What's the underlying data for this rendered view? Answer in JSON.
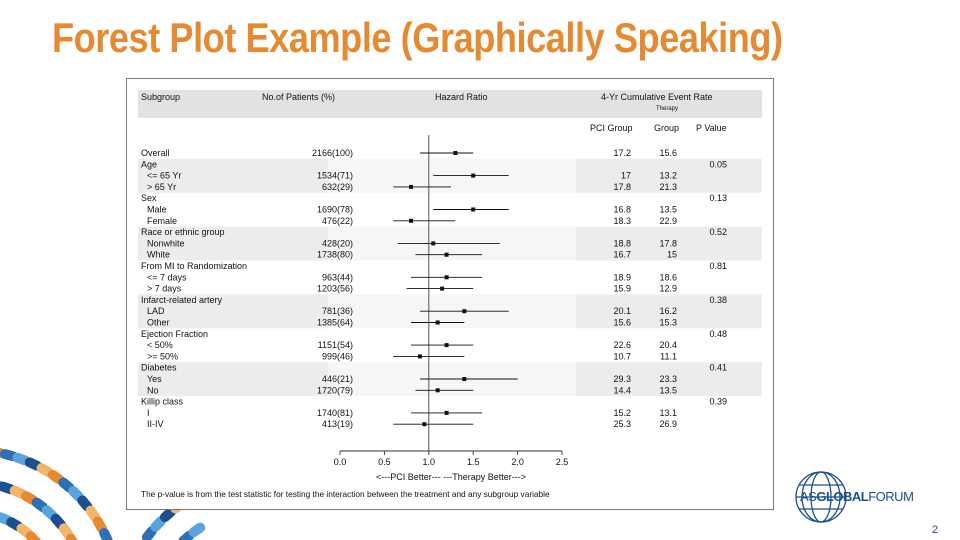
{
  "slide": {
    "title": "Forest Plot Example (Graphically Speaking)",
    "page_number": "2",
    "logo_text_prefix": "AS",
    "logo_text_bold": "GLOBAL",
    "logo_text_suffix": "FORUM",
    "accent_color": "#e58a32"
  },
  "chart_data": {
    "type": "forest",
    "headers": {
      "subgroup": "Subgroup",
      "patients": "No.of Patients (%)",
      "hazard_ratio": "Hazard Ratio",
      "event_rate": "4-Yr Cumulative Event Rate",
      "therapy": "Therapy",
      "pci_group": "PCI Group",
      "group": "Group",
      "p_value": "P Value"
    },
    "x_ticks": [
      "0.0",
      "0.5",
      "1.0",
      "1.5",
      "2.0",
      "2.5"
    ],
    "x_tick_values": [
      0,
      0.5,
      1.0,
      1.5,
      2.0,
      2.5
    ],
    "xlim": [
      0,
      2.5
    ],
    "reference_line": 1.0,
    "xlabel": "<---PCI Better---     ---Therapy Better--->",
    "footnote": "The p-value is from the test statistic for testing the interaction between the treatment and any subgroup variable",
    "rows": [
      {
        "label": "Overall",
        "indent": false,
        "n": "2166(100)",
        "hr": 1.3,
        "lo": 0.9,
        "hi": 1.5,
        "pci": "17.2",
        "therapy": "15.6",
        "p": ""
      },
      {
        "label": "Age",
        "indent": false,
        "header": true,
        "p": "0.05"
      },
      {
        "label": "<= 65 Yr",
        "indent": true,
        "n": "1534(71)",
        "hr": 1.5,
        "lo": 1.05,
        "hi": 1.9,
        "pci": "17",
        "therapy": "13.2",
        "p": ""
      },
      {
        "label": "> 65 Yr",
        "indent": true,
        "n": "632(29)",
        "hr": 0.8,
        "lo": 0.6,
        "hi": 1.25,
        "pci": "17.8",
        "therapy": "21.3",
        "p": ""
      },
      {
        "label": "Sex",
        "indent": false,
        "header": true,
        "p": "0.13"
      },
      {
        "label": "Male",
        "indent": true,
        "n": "1690(78)",
        "hr": 1.5,
        "lo": 1.05,
        "hi": 1.9,
        "pci": "16.8",
        "therapy": "13.5",
        "p": ""
      },
      {
        "label": "Female",
        "indent": true,
        "n": "476(22)",
        "hr": 0.8,
        "lo": 0.6,
        "hi": 1.3,
        "pci": "18.3",
        "therapy": "22.9",
        "p": ""
      },
      {
        "label": "Race or ethnic group",
        "indent": false,
        "header": true,
        "p": "0.52"
      },
      {
        "label": "Nonwhite",
        "indent": true,
        "n": "428(20)",
        "hr": 1.05,
        "lo": 0.65,
        "hi": 1.8,
        "pci": "18.8",
        "therapy": "17.8",
        "p": ""
      },
      {
        "label": "White",
        "indent": true,
        "n": "1738(80)",
        "hr": 1.2,
        "lo": 0.85,
        "hi": 1.6,
        "pci": "16.7",
        "therapy": "15",
        "p": ""
      },
      {
        "label": "From MI to Randomization",
        "indent": false,
        "header": true,
        "p": "0.81"
      },
      {
        "label": "<= 7 days",
        "indent": true,
        "n": "963(44)",
        "hr": 1.2,
        "lo": 0.8,
        "hi": 1.6,
        "pci": "18.9",
        "therapy": "18.6",
        "p": ""
      },
      {
        "label": "> 7 days",
        "indent": true,
        "n": "1203(56)",
        "hr": 1.15,
        "lo": 0.75,
        "hi": 1.5,
        "pci": "15.9",
        "therapy": "12.9",
        "p": ""
      },
      {
        "label": "Infarct-related artery",
        "indent": false,
        "header": true,
        "p": "0.38"
      },
      {
        "label": "LAD",
        "indent": true,
        "n": "781(36)",
        "hr": 1.4,
        "lo": 0.9,
        "hi": 1.9,
        "pci": "20.1",
        "therapy": "16.2",
        "p": ""
      },
      {
        "label": "Other",
        "indent": true,
        "n": "1385(64)",
        "hr": 1.1,
        "lo": 0.8,
        "hi": 1.4,
        "pci": "15.6",
        "therapy": "15.3",
        "p": ""
      },
      {
        "label": "Ejection Fraction",
        "indent": false,
        "header": true,
        "p": "0.48"
      },
      {
        "label": "< 50%",
        "indent": true,
        "n": "1151(54)",
        "hr": 1.2,
        "lo": 0.8,
        "hi": 1.5,
        "pci": "22.6",
        "therapy": "20.4",
        "p": ""
      },
      {
        "label": ">= 50%",
        "indent": true,
        "n": "999(46)",
        "hr": 0.9,
        "lo": 0.6,
        "hi": 1.4,
        "pci": "10.7",
        "therapy": "11.1",
        "p": ""
      },
      {
        "label": "Diabetes",
        "indent": false,
        "header": true,
        "p": "0.41"
      },
      {
        "label": "Yes",
        "indent": true,
        "n": "446(21)",
        "hr": 1.4,
        "lo": 0.9,
        "hi": 2.0,
        "pci": "29.3",
        "therapy": "23.3",
        "p": ""
      },
      {
        "label": "No",
        "indent": true,
        "n": "1720(79)",
        "hr": 1.1,
        "lo": 0.85,
        "hi": 1.5,
        "pci": "14.4",
        "therapy": "13.5",
        "p": ""
      },
      {
        "label": "Killip class",
        "indent": false,
        "header": true,
        "p": "0.39"
      },
      {
        "label": "I",
        "indent": true,
        "n": "1740(81)",
        "hr": 1.2,
        "lo": 0.8,
        "hi": 1.6,
        "pci": "15.2",
        "therapy": "13.1",
        "p": ""
      },
      {
        "label": "II-IV",
        "indent": true,
        "n": "413(19)",
        "hr": 0.95,
        "lo": 0.6,
        "hi": 1.5,
        "pci": "25.3",
        "therapy": "26.9",
        "p": ""
      }
    ]
  }
}
